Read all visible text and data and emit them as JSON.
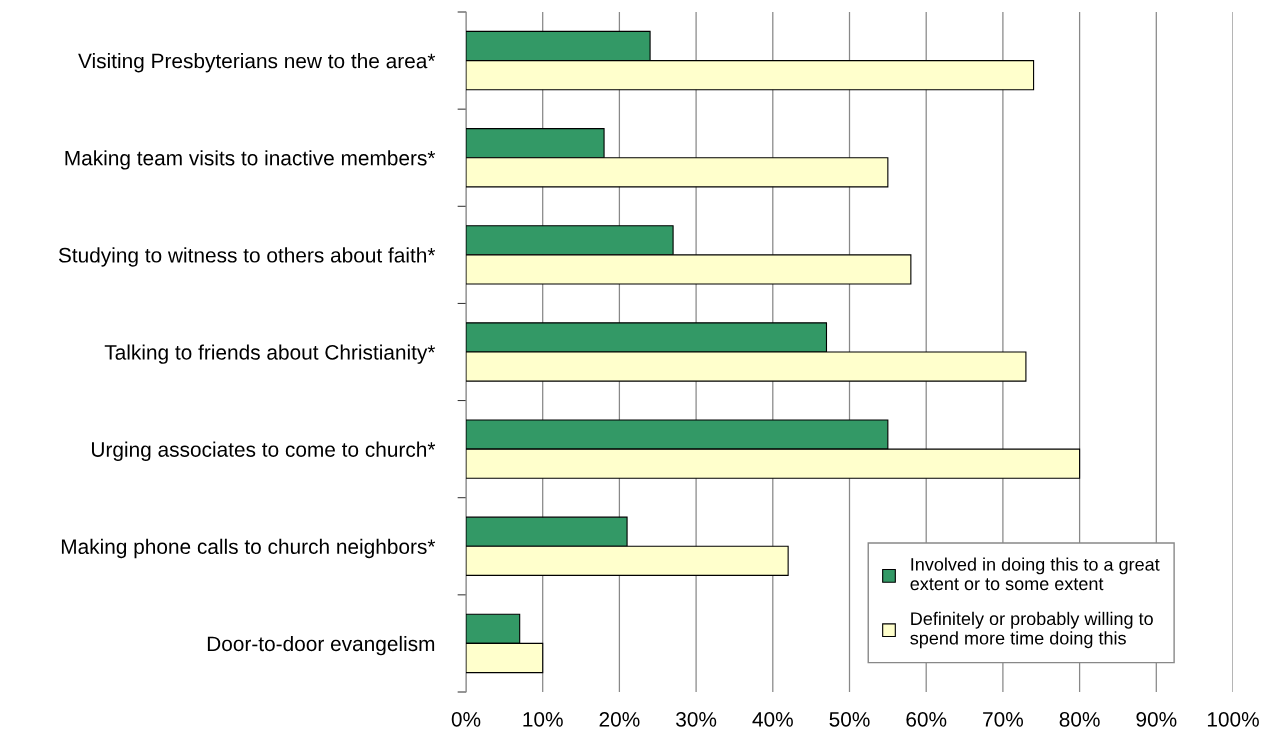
{
  "chart_data": {
    "type": "bar",
    "orientation": "horizontal",
    "categories": [
      "Visiting Presbyterians new to the area*",
      "Making team visits to inactive members*",
      "Studying to witness to others about faith*",
      "Talking to friends about Christianity*",
      "Urging associates to come to church*",
      "Making phone calls to church neighbors*",
      "Door-to-door evangelism"
    ],
    "series": [
      {
        "name": "Involved in doing this to a great\nextent or to some extent",
        "color": "#339966",
        "values": [
          24,
          18,
          27,
          47,
          55,
          21,
          7
        ]
      },
      {
        "name": "Definitely or probably willing to\nspend more time doing this",
        "color": "#ffffcc",
        "values": [
          74,
          55,
          58,
          73,
          80,
          42,
          10
        ]
      }
    ],
    "xlim": [
      0,
      100
    ],
    "xticks": [
      {
        "value": 0,
        "label": "0%"
      },
      {
        "value": 10,
        "label": "10%"
      },
      {
        "value": 20,
        "label": "20%"
      },
      {
        "value": 30,
        "label": "30%"
      },
      {
        "value": 40,
        "label": "40%"
      },
      {
        "value": 50,
        "label": "50%"
      },
      {
        "value": 60,
        "label": "60%"
      },
      {
        "value": 70,
        "label": "70%"
      },
      {
        "value": 80,
        "label": "80%"
      },
      {
        "value": 90,
        "label": "90%"
      },
      {
        "value": 100,
        "label": "100%"
      }
    ],
    "grid": "x",
    "legend": "bottom right"
  }
}
